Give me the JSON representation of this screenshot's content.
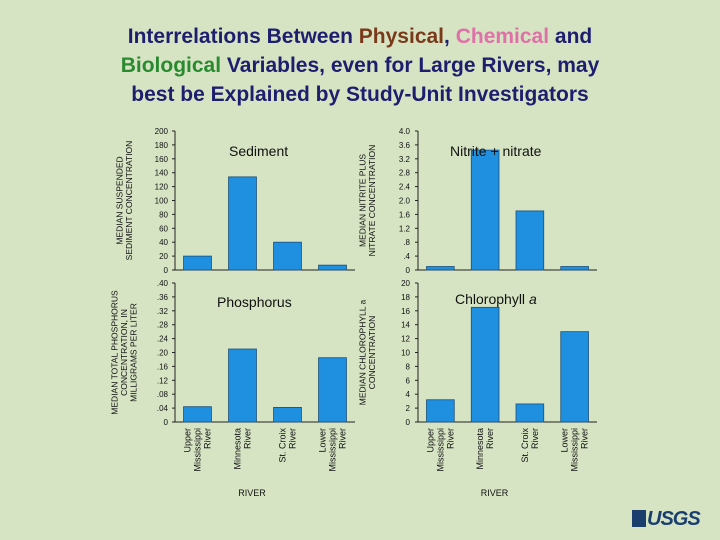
{
  "title": {
    "part1": "Interrelations Between ",
    "physical": "Physical",
    "comma": ", ",
    "chemical": "Chemical",
    "part2": " and",
    "biological": "Biological",
    "part3": " Variables, even for Large Rivers, may",
    "line3": "best be Explained by Study-Unit Investigators"
  },
  "colors": {
    "background": "#d6e4c4",
    "bar": "#1f8fe0",
    "title": "#1e1e6e",
    "physical": "#7a3a1a",
    "chemical": "#e070a8",
    "biological": "#2a8a30"
  },
  "xlabel": "RIVER",
  "logo": "USGS",
  "chart_data": [
    {
      "type": "bar",
      "panel_label": "Sediment",
      "ylabel_lines": [
        "MEDIAN SUSPENDED",
        "SEDIMENT CONCENTRATION"
      ],
      "categories": [
        "Upper Mississippi River",
        "Minnesota River",
        "St. Croix River",
        "Lower Mississippi River"
      ],
      "values": [
        20,
        134,
        40,
        7
      ],
      "ylim": [
        0,
        200
      ],
      "yticks": [
        "0",
        "20",
        "40",
        "60",
        "80",
        "100",
        "120",
        "140",
        "160",
        "180",
        "200"
      ]
    },
    {
      "type": "bar",
      "panel_label": "Nitrite + nitrate",
      "ylabel_lines": [
        "MEDIAN NITRITE PLUS",
        "NITRATE CONCENTRATION"
      ],
      "categories": [
        "Upper Mississippi River",
        "Minnesota River",
        "St. Croix River",
        "Lower Mississippi River"
      ],
      "values": [
        0.1,
        3.45,
        1.7,
        0.1
      ],
      "ylim": [
        0,
        4.0
      ],
      "yticks": [
        "0",
        ".4",
        ".8",
        "1.2",
        "1.6",
        "2.0",
        "2.4",
        "2.8",
        "3.2",
        "3.6",
        "4.0"
      ]
    },
    {
      "type": "bar",
      "panel_label": "Phosphorus",
      "ylabel_lines": [
        "MEDIAN TOTAL PHOSPHORUS",
        "CONCENTRATION, IN",
        "MILLIGRAMS PER LITER"
      ],
      "categories": [
        "Upper Mississippi River",
        "Minnesota River",
        "St. Croix River",
        "Lower Mississippi River"
      ],
      "values": [
        0.044,
        0.21,
        0.042,
        0.185
      ],
      "ylim": [
        0,
        0.4
      ],
      "yticks": [
        "0",
        ".04",
        ".08",
        ".12",
        ".16",
        ".20",
        ".24",
        ".28",
        ".32",
        ".36",
        ".40"
      ]
    },
    {
      "type": "bar",
      "panel_label": "Chlorophyll ",
      "panel_label_italic": "a",
      "ylabel_lines": [
        "MEDIAN CHLOROPHYLL a",
        "CONCENTRATION"
      ],
      "categories": [
        "Upper Mississippi River",
        "Minnesota River",
        "St. Croix River",
        "Lower Mississippi River"
      ],
      "values": [
        3.2,
        16.5,
        2.6,
        13
      ],
      "ylim": [
        0,
        20
      ],
      "yticks": [
        "0",
        "2",
        "4",
        "6",
        "8",
        "10",
        "12",
        "14",
        "16",
        "18",
        "20"
      ]
    }
  ],
  "category_label_lines": [
    [
      "Upper",
      "Mississippi",
      "River"
    ],
    [
      "Minnesota",
      "River"
    ],
    [
      "St. Croix",
      "River"
    ],
    [
      "Lower",
      "Mississippi",
      "River"
    ]
  ]
}
